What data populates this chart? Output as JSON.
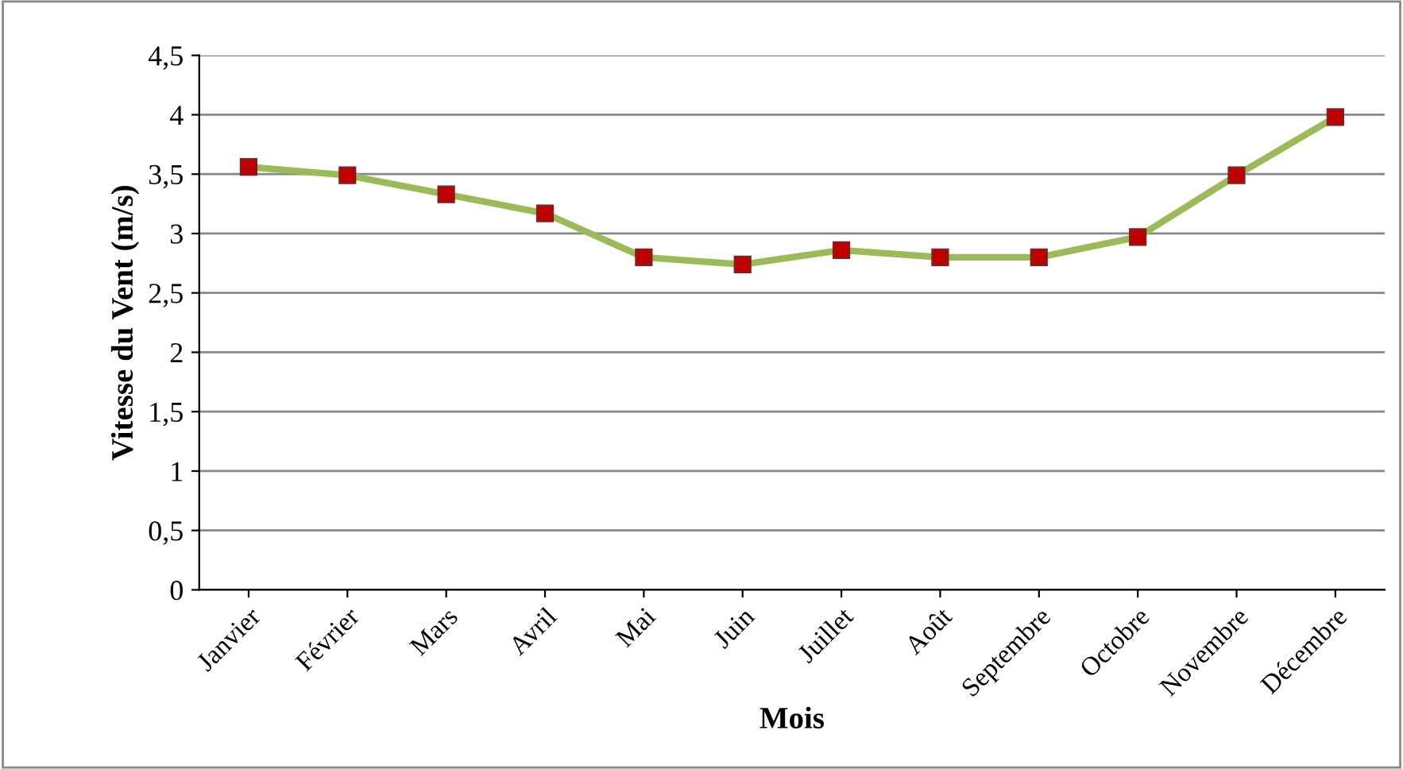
{
  "chart_data": {
    "type": "line",
    "xlabel": "Mois",
    "ylabel": "Vitesse du Vent (m/s)",
    "categories": [
      "Janvier",
      "Février",
      "Mars",
      "Avril",
      "Mai",
      "Juin",
      "Juillet",
      "Août",
      "Septembre",
      "Octobre",
      "Novembre",
      "Décembre"
    ],
    "series": [
      {
        "color": "#9bbb59",
        "values": [
          3.56,
          3.49,
          3.33,
          3.17,
          2.8,
          2.74,
          2.86,
          2.8,
          2.8,
          2.97,
          3.49,
          3.98
        ]
      }
    ],
    "marker": "square",
    "line_style": "solid",
    "ylim": [
      0,
      4.5
    ],
    "yticks": [
      {
        "value": 0,
        "label": "0"
      },
      {
        "value": 0.5,
        "label": "0,5"
      },
      {
        "value": 1,
        "label": "1"
      },
      {
        "value": 1.5,
        "label": "1,5"
      },
      {
        "value": 2,
        "label": "2"
      },
      {
        "value": 2.5,
        "label": "2,5"
      },
      {
        "value": 3,
        "label": "3"
      },
      {
        "value": 3.5,
        "label": "3,5"
      },
      {
        "value": 4,
        "label": "4"
      },
      {
        "value": 4.5,
        "label": "4,5"
      }
    ],
    "grid": "y"
  }
}
